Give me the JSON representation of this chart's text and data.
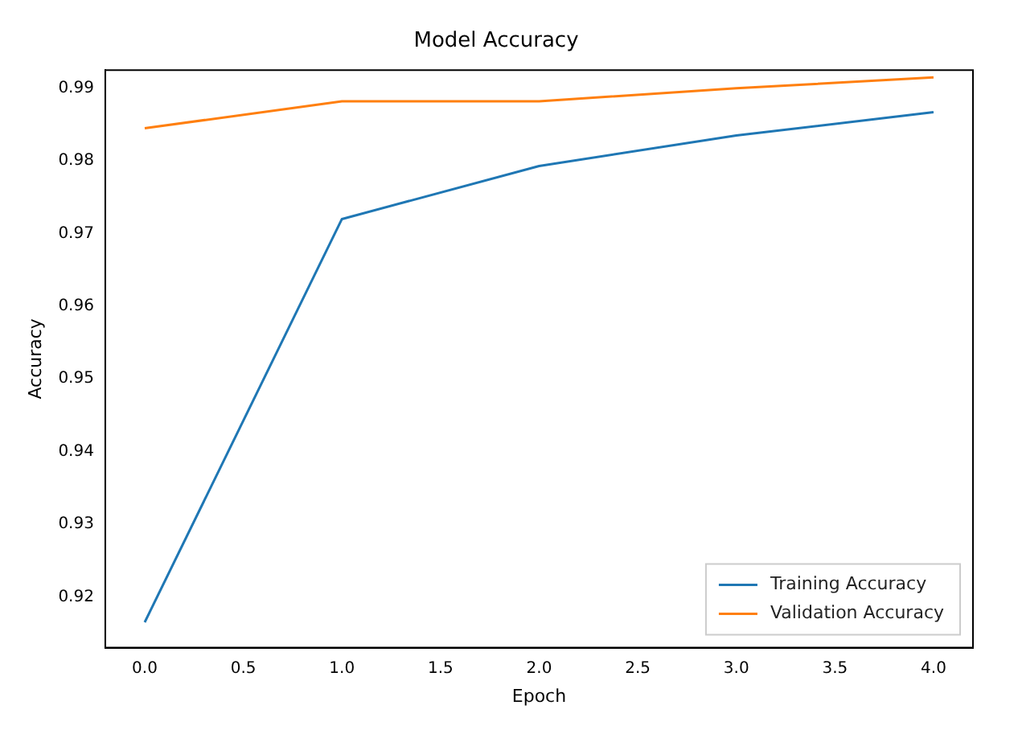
{
  "chart_data": {
    "type": "line",
    "title": "Model Accuracy",
    "xlabel": "Epoch",
    "ylabel": "Accuracy",
    "x": [
      0,
      1,
      2,
      3,
      4
    ],
    "series": [
      {
        "name": "Training Accuracy",
        "color": "#1f77b4",
        "values": [
          0.9165,
          0.972,
          0.9793,
          0.9835,
          0.9867
        ]
      },
      {
        "name": "Validation Accuracy",
        "color": "#ff7f0e",
        "values": [
          0.9845,
          0.9882,
          0.9882,
          0.99,
          0.9915
        ]
      }
    ],
    "xlim": [
      -0.2,
      4.2
    ],
    "xticks": [
      {
        "value": 0,
        "label": "0.0"
      },
      {
        "value": 0.5,
        "label": "0.5"
      },
      {
        "value": 1,
        "label": "1.0"
      },
      {
        "value": 1.5,
        "label": "1.5"
      },
      {
        "value": 2,
        "label": "2.0"
      },
      {
        "value": 2.5,
        "label": "2.5"
      },
      {
        "value": 3,
        "label": "3.0"
      },
      {
        "value": 3.5,
        "label": "3.5"
      },
      {
        "value": 4,
        "label": "4.0"
      }
    ],
    "ylim": [
      0.913,
      0.9925
    ],
    "yticks": [
      0.92,
      0.93,
      0.94,
      0.95,
      0.96,
      0.97,
      0.98,
      0.99
    ],
    "legend": "bottom right",
    "marker": "none",
    "line_style": "solid"
  }
}
